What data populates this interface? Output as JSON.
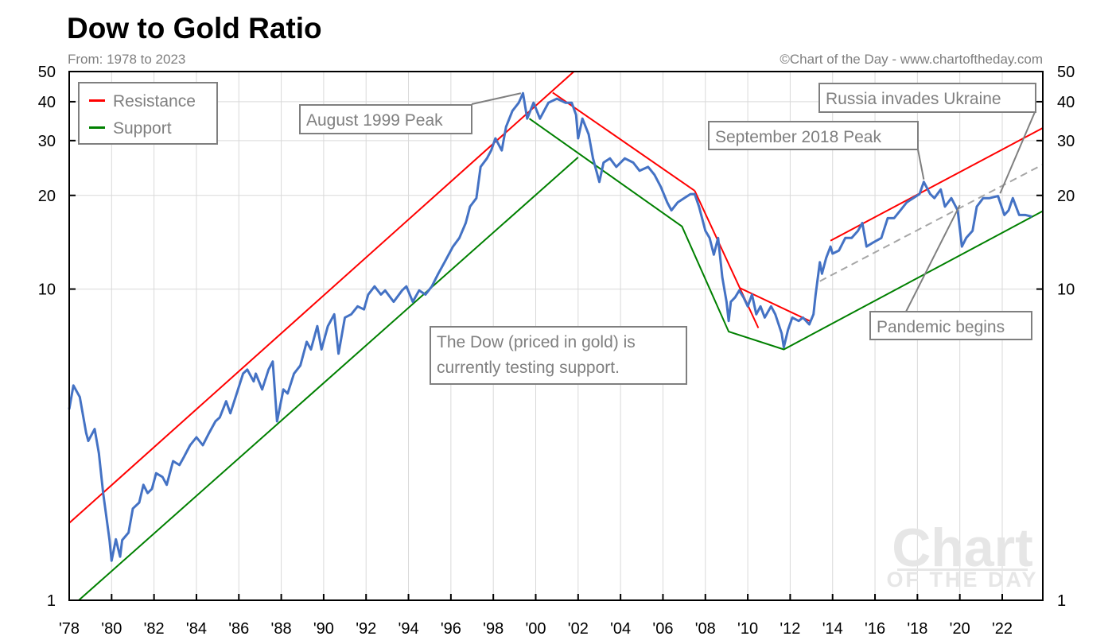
{
  "chart_data": {
    "type": "line",
    "title": "Dow to Gold Ratio",
    "subtitle": "From: 1978 to 2023",
    "credit": "©Chart of the Day - www.chartoftheday.com",
    "watermark": {
      "line1": "Chart",
      "line2": "OF THE DAY"
    },
    "yscale": "log",
    "ylim": [
      1,
      50
    ],
    "xlim": [
      1978,
      2023.9
    ],
    "grid": true,
    "y_ticks": [
      1,
      10,
      20,
      30,
      40,
      50
    ],
    "y_tick_labels": [
      "1",
      "10",
      "20",
      "30",
      "40",
      "50"
    ],
    "x_ticks": [
      1978,
      1980,
      1982,
      1984,
      1986,
      1988,
      1990,
      1992,
      1994,
      1996,
      1998,
      2000,
      2002,
      2004,
      2006,
      2008,
      2010,
      2012,
      2014,
      2016,
      2018,
      2020,
      2022
    ],
    "x_tick_labels": [
      "'78",
      "'80",
      "'82",
      "'84",
      "'86",
      "'88",
      "'90",
      "'92",
      "'94",
      "'96",
      "'98",
      "'00",
      "'02",
      "'04",
      "'06",
      "'08",
      "'10",
      "'12",
      "'14",
      "'16",
      "'18",
      "'20",
      "'22"
    ],
    "legend": {
      "placement": "top-left",
      "entries": [
        {
          "label": "Resistance",
          "color": "#ff0000"
        },
        {
          "label": "Support",
          "color": "#008000"
        }
      ]
    },
    "colors": {
      "series": "#4472c4",
      "resistance": "#ff0000",
      "support": "#008000",
      "dashed": "#a6a6a6",
      "callout": "#7f7f7f"
    },
    "series": [
      {
        "name": "Dow to Gold Ratio",
        "points": [
          [
            1978.0,
            4.11
          ],
          [
            1978.2,
            4.9
          ],
          [
            1978.5,
            4.5
          ],
          [
            1978.8,
            3.45
          ],
          [
            1978.9,
            3.25
          ],
          [
            1979.2,
            3.55
          ],
          [
            1979.4,
            2.97
          ],
          [
            1979.6,
            2.21
          ],
          [
            1979.9,
            1.56
          ],
          [
            1980.0,
            1.34
          ],
          [
            1980.2,
            1.57
          ],
          [
            1980.4,
            1.38
          ],
          [
            1980.5,
            1.56
          ],
          [
            1980.8,
            1.65
          ],
          [
            1981.0,
            1.97
          ],
          [
            1981.3,
            2.06
          ],
          [
            1981.5,
            2.35
          ],
          [
            1981.7,
            2.21
          ],
          [
            1981.9,
            2.28
          ],
          [
            1982.1,
            2.56
          ],
          [
            1982.4,
            2.49
          ],
          [
            1982.6,
            2.35
          ],
          [
            1982.9,
            2.8
          ],
          [
            1983.2,
            2.72
          ],
          [
            1983.4,
            2.88
          ],
          [
            1983.7,
            3.15
          ],
          [
            1984.0,
            3.34
          ],
          [
            1984.3,
            3.15
          ],
          [
            1984.6,
            3.45
          ],
          [
            1984.9,
            3.76
          ],
          [
            1985.1,
            3.87
          ],
          [
            1985.4,
            4.36
          ],
          [
            1985.6,
            3.99
          ],
          [
            1985.9,
            4.62
          ],
          [
            1986.2,
            5.35
          ],
          [
            1986.4,
            5.51
          ],
          [
            1986.7,
            5.05
          ],
          [
            1986.8,
            5.35
          ],
          [
            1987.1,
            4.76
          ],
          [
            1987.4,
            5.51
          ],
          [
            1987.6,
            5.85
          ],
          [
            1987.8,
            3.76
          ],
          [
            1988.1,
            4.76
          ],
          [
            1988.3,
            4.62
          ],
          [
            1988.6,
            5.35
          ],
          [
            1988.9,
            5.68
          ],
          [
            1989.2,
            6.77
          ],
          [
            1989.4,
            6.4
          ],
          [
            1989.7,
            7.6
          ],
          [
            1989.9,
            6.4
          ],
          [
            1990.2,
            7.6
          ],
          [
            1990.5,
            8.3
          ],
          [
            1990.7,
            6.2
          ],
          [
            1991.0,
            8.1
          ],
          [
            1991.3,
            8.3
          ],
          [
            1991.6,
            8.8
          ],
          [
            1991.9,
            8.6
          ],
          [
            1992.1,
            9.6
          ],
          [
            1992.4,
            10.2
          ],
          [
            1992.7,
            9.6
          ],
          [
            1992.9,
            9.9
          ],
          [
            1993.3,
            9.1
          ],
          [
            1993.7,
            9.9
          ],
          [
            1993.9,
            10.2
          ],
          [
            1994.2,
            9.1
          ],
          [
            1994.5,
            9.9
          ],
          [
            1994.8,
            9.6
          ],
          [
            1995.1,
            10.2
          ],
          [
            1995.4,
            11.2
          ],
          [
            1995.7,
            12.2
          ],
          [
            1996.1,
            13.7
          ],
          [
            1996.4,
            14.6
          ],
          [
            1996.7,
            16.3
          ],
          [
            1996.9,
            18.4
          ],
          [
            1997.2,
            19.6
          ],
          [
            1997.4,
            24.7
          ],
          [
            1997.7,
            26.3
          ],
          [
            1997.9,
            27.9
          ],
          [
            1998.1,
            30.5
          ],
          [
            1998.4,
            27.9
          ],
          [
            1998.6,
            33.2
          ],
          [
            1998.9,
            37.4
          ],
          [
            1999.2,
            39.7
          ],
          [
            1999.4,
            42.6
          ],
          [
            1999.6,
            35.3
          ],
          [
            1999.9,
            39.7
          ],
          [
            2000.2,
            35.3
          ],
          [
            2000.6,
            39.7
          ],
          [
            2001.0,
            40.9
          ],
          [
            2001.4,
            39.7
          ],
          [
            2001.7,
            39.7
          ],
          [
            2001.9,
            36.3
          ],
          [
            2002.0,
            30.5
          ],
          [
            2002.2,
            35.3
          ],
          [
            2002.5,
            31.4
          ],
          [
            2002.7,
            26.3
          ],
          [
            2003.0,
            22.1
          ],
          [
            2003.2,
            25.5
          ],
          [
            2003.5,
            26.3
          ],
          [
            2003.8,
            24.7
          ],
          [
            2004.2,
            26.3
          ],
          [
            2004.6,
            25.5
          ],
          [
            2004.9,
            24.0
          ],
          [
            2005.3,
            24.7
          ],
          [
            2005.6,
            23.3
          ],
          [
            2005.9,
            21.3
          ],
          [
            2006.2,
            19.0
          ],
          [
            2006.4,
            17.9
          ],
          [
            2006.7,
            19.0
          ],
          [
            2007.0,
            19.6
          ],
          [
            2007.3,
            20.2
          ],
          [
            2007.5,
            20.2
          ],
          [
            2007.7,
            18.4
          ],
          [
            2008.0,
            15.4
          ],
          [
            2008.2,
            14.6
          ],
          [
            2008.4,
            12.9
          ],
          [
            2008.6,
            14.6
          ],
          [
            2008.8,
            10.9
          ],
          [
            2009.0,
            9.1
          ],
          [
            2009.1,
            7.9
          ],
          [
            2009.2,
            9.1
          ],
          [
            2009.4,
            9.4
          ],
          [
            2009.6,
            9.9
          ],
          [
            2009.8,
            9.4
          ],
          [
            2010.0,
            8.8
          ],
          [
            2010.2,
            9.6
          ],
          [
            2010.4,
            8.3
          ],
          [
            2010.6,
            8.8
          ],
          [
            2010.8,
            8.1
          ],
          [
            2011.1,
            8.8
          ],
          [
            2011.3,
            8.3
          ],
          [
            2011.6,
            7.2
          ],
          [
            2011.7,
            6.5
          ],
          [
            2011.9,
            7.4
          ],
          [
            2012.1,
            8.1
          ],
          [
            2012.4,
            7.9
          ],
          [
            2012.6,
            8.1
          ],
          [
            2012.9,
            7.7
          ],
          [
            2013.1,
            8.3
          ],
          [
            2013.2,
            9.6
          ],
          [
            2013.4,
            12.2
          ],
          [
            2013.5,
            11.2
          ],
          [
            2013.7,
            12.6
          ],
          [
            2013.9,
            13.7
          ],
          [
            2014.0,
            13.0
          ],
          [
            2014.3,
            13.3
          ],
          [
            2014.6,
            14.6
          ],
          [
            2014.9,
            14.6
          ],
          [
            2015.2,
            15.4
          ],
          [
            2015.4,
            16.3
          ],
          [
            2015.6,
            13.7
          ],
          [
            2015.9,
            14.1
          ],
          [
            2016.3,
            14.6
          ],
          [
            2016.6,
            16.9
          ],
          [
            2016.9,
            16.9
          ],
          [
            2017.2,
            17.9
          ],
          [
            2017.5,
            19.0
          ],
          [
            2017.8,
            19.6
          ],
          [
            2018.1,
            20.2
          ],
          [
            2018.3,
            22.1
          ],
          [
            2018.6,
            20.2
          ],
          [
            2018.8,
            19.6
          ],
          [
            2019.1,
            20.9
          ],
          [
            2019.3,
            18.4
          ],
          [
            2019.6,
            19.6
          ],
          [
            2019.9,
            17.9
          ],
          [
            2020.1,
            13.7
          ],
          [
            2020.3,
            14.6
          ],
          [
            2020.6,
            15.4
          ],
          [
            2020.8,
            18.4
          ],
          [
            2021.1,
            19.6
          ],
          [
            2021.4,
            19.6
          ],
          [
            2021.8,
            19.9
          ],
          [
            2022.1,
            17.3
          ],
          [
            2022.3,
            17.9
          ],
          [
            2022.5,
            19.6
          ],
          [
            2022.8,
            17.3
          ],
          [
            2023.1,
            17.3
          ],
          [
            2023.4,
            17.1
          ]
        ]
      }
    ],
    "trendlines": [
      {
        "name": "resistance-1978-2001",
        "kind": "resistance",
        "points": [
          [
            1978.0,
            1.77
          ],
          [
            2001.8,
            50
          ]
        ]
      },
      {
        "name": "support-1978-2002",
        "kind": "support",
        "points": [
          [
            1978.45,
            1.0
          ],
          [
            2002.0,
            26.5
          ]
        ]
      },
      {
        "name": "resistance-2000-2007",
        "kind": "resistance",
        "points": [
          [
            2000.8,
            42.8
          ],
          [
            2007.5,
            20.7
          ]
        ]
      },
      {
        "name": "resistance-2007-2010",
        "kind": "resistance",
        "points": [
          [
            2007.5,
            20.7
          ],
          [
            2010.5,
            7.5
          ]
        ]
      },
      {
        "name": "support-1999-2023",
        "kind": "support",
        "points": [
          [
            1999.7,
            35.3
          ],
          [
            2006.9,
            15.9
          ],
          [
            2009.1,
            7.3
          ],
          [
            2011.7,
            6.4
          ],
          [
            2023.9,
            17.8
          ]
        ]
      },
      {
        "name": "resistance-2009-2013",
        "kind": "resistance",
        "points": [
          [
            2009.6,
            10.1
          ],
          [
            2013.0,
            7.85
          ]
        ]
      },
      {
        "name": "resistance-2014-2023",
        "kind": "resistance",
        "points": [
          [
            2013.9,
            14.3
          ],
          [
            2023.9,
            32.9
          ]
        ]
      },
      {
        "name": "midline-2013-2023",
        "kind": "dashed",
        "points": [
          [
            2013.4,
            10.6
          ],
          [
            2023.9,
            25.1
          ]
        ]
      }
    ],
    "annotations": [
      {
        "name": "august-1999-peak",
        "text": [
          "August 1999 Peak"
        ],
        "target": [
          1999.3,
          42.6
        ]
      },
      {
        "name": "september-2018-peak",
        "text": [
          "September 2018 Peak"
        ],
        "target": [
          2018.3,
          22.5
        ]
      },
      {
        "name": "russia-invades-ukraine",
        "text": [
          "Russia invades Ukraine"
        ],
        "target": [
          2021.9,
          20.3
        ]
      },
      {
        "name": "pandemic-begins",
        "text": [
          "Pandemic begins"
        ],
        "target": [
          2020.0,
          18.6
        ]
      },
      {
        "name": "testing-support-note",
        "text": [
          "The Dow (priced in gold) is",
          "currently testing support."
        ],
        "target": null
      }
    ]
  }
}
